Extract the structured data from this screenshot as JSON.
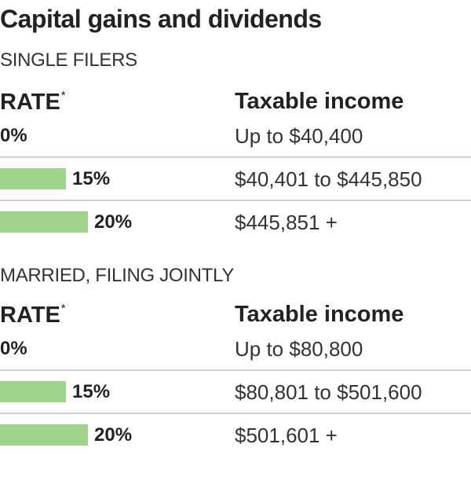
{
  "title": "Capital gains and dividends",
  "footnote_mark": "*",
  "colors": {
    "bar": "#9fd48c",
    "divider": "#d0d0d0",
    "text": "#222222"
  },
  "chart_data": [
    {
      "type": "table",
      "title": "SINGLE FILERS",
      "columns": [
        "RATE",
        "Taxable income"
      ],
      "rows": [
        {
          "rate": "0%",
          "rate_value": 0,
          "income": "Up to $40,400"
        },
        {
          "rate": "15%",
          "rate_value": 15,
          "income": "$40,401 to $445,850"
        },
        {
          "rate": "20%",
          "rate_value": 20,
          "income": "$445,851 +"
        }
      ]
    },
    {
      "type": "table",
      "title": "MARRIED, FILING JOINTLY",
      "columns": [
        "RATE",
        "Taxable income"
      ],
      "rows": [
        {
          "rate": "0%",
          "rate_value": 0,
          "income": "Up to $80,800"
        },
        {
          "rate": "15%",
          "rate_value": 15,
          "income": "$80,801 to $501,600"
        },
        {
          "rate": "20%",
          "rate_value": 20,
          "income": "$501,601 +"
        }
      ]
    }
  ]
}
